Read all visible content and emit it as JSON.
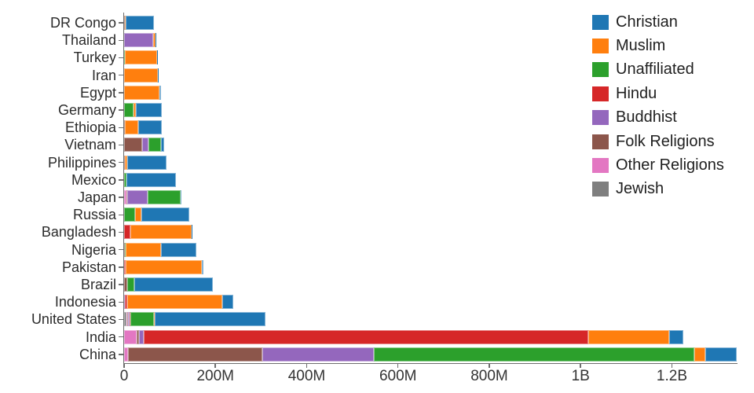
{
  "chart_data": {
    "type": "bar",
    "orientation": "horizontal",
    "stacked": true,
    "title": "",
    "xlabel": "",
    "ylabel": "",
    "unit": "people",
    "value_scale": "millions",
    "grid": false,
    "legend_position": "upper-right",
    "stack_order": [
      "Jewish",
      "Other Religions",
      "Folk Religions",
      "Buddhist",
      "Hindu",
      "Unaffiliated",
      "Muslim",
      "Christian"
    ],
    "legend": [
      {
        "label": "Christian",
        "color": "#1f77b4"
      },
      {
        "label": "Muslim",
        "color": "#ff7f0e"
      },
      {
        "label": "Unaffiliated",
        "color": "#2ca02c"
      },
      {
        "label": "Hindu",
        "color": "#d62728"
      },
      {
        "label": "Buddhist",
        "color": "#9467bd"
      },
      {
        "label": "Folk Religions",
        "color": "#8c564b"
      },
      {
        "label": "Other Religions",
        "color": "#e377c2"
      },
      {
        "label": "Jewish",
        "color": "#7f7f7f"
      }
    ],
    "x_axis": {
      "min": 0,
      "max": 1342,
      "ticks": [
        {
          "value": 0,
          "label": "0"
        },
        {
          "value": 200,
          "label": "200M"
        },
        {
          "value": 400,
          "label": "400M"
        },
        {
          "value": 600,
          "label": "600M"
        },
        {
          "value": 800,
          "label": "800M"
        },
        {
          "value": 1000,
          "label": "1B"
        },
        {
          "value": 1200,
          "label": "1.2B"
        }
      ]
    },
    "categories": [
      "DR Congo",
      "Thailand",
      "Turkey",
      "Iran",
      "Egypt",
      "Germany",
      "Ethiopia",
      "Vietnam",
      "Philippines",
      "Mexico",
      "Japan",
      "Russia",
      "Bangladesh",
      "Nigeria",
      "Pakistan",
      "Brazil",
      "Indonesia",
      "United States",
      "India",
      "China"
    ],
    "countries": [
      {
        "name": "DR Congo",
        "total": 65.9,
        "segments": [
          {
            "religion": "Folk Religions",
            "value": 1.7
          },
          {
            "religion": "Muslim",
            "value": 1.0
          },
          {
            "religion": "Christian",
            "value": 63.2
          }
        ]
      },
      {
        "name": "Thailand",
        "total": 68.8,
        "segments": [
          {
            "religion": "Buddhist",
            "value": 64.4
          },
          {
            "religion": "Muslim",
            "value": 3.8
          },
          {
            "religion": "Christian",
            "value": 0.6
          }
        ]
      },
      {
        "name": "Turkey",
        "total": 72.5,
        "segments": [
          {
            "religion": "Unaffiliated",
            "value": 0.9
          },
          {
            "religion": "Muslim",
            "value": 71.3
          },
          {
            "religion": "Christian",
            "value": 0.3
          }
        ]
      },
      {
        "name": "Iran",
        "total": 74.0,
        "segments": [
          {
            "religion": "Other Religions",
            "value": 0.2
          },
          {
            "religion": "Muslim",
            "value": 73.6
          },
          {
            "religion": "Christian",
            "value": 0.2
          }
        ]
      },
      {
        "name": "Egypt",
        "total": 81.1,
        "segments": [
          {
            "religion": "Muslim",
            "value": 77.0
          },
          {
            "religion": "Christian",
            "value": 4.1
          }
        ]
      },
      {
        "name": "Germany",
        "total": 82.2,
        "segments": [
          {
            "religion": "Jewish",
            "value": 0.2
          },
          {
            "religion": "Buddhist",
            "value": 0.3
          },
          {
            "religion": "Unaffiliated",
            "value": 20.4
          },
          {
            "religion": "Muslim",
            "value": 4.8
          },
          {
            "religion": "Christian",
            "value": 56.5
          }
        ]
      },
      {
        "name": "Ethiopia",
        "total": 83.0,
        "segments": [
          {
            "religion": "Folk Religions",
            "value": 2.2
          },
          {
            "religion": "Muslim",
            "value": 28.7
          },
          {
            "religion": "Christian",
            "value": 52.1
          }
        ]
      },
      {
        "name": "Vietnam",
        "total": 87.7,
        "segments": [
          {
            "religion": "Folk Religions",
            "value": 39.8
          },
          {
            "religion": "Buddhist",
            "value": 14.4
          },
          {
            "religion": "Unaffiliated",
            "value": 26.0
          },
          {
            "religion": "Christian",
            "value": 7.5
          }
        ]
      },
      {
        "name": "Philippines",
        "total": 93.0,
        "segments": [
          {
            "religion": "Folk Religions",
            "value": 1.4
          },
          {
            "religion": "Unaffiliated",
            "value": 0.1
          },
          {
            "religion": "Muslim",
            "value": 5.1
          },
          {
            "religion": "Christian",
            "value": 86.4
          }
        ]
      },
      {
        "name": "Mexico",
        "total": 113.1,
        "segments": [
          {
            "religion": "Unaffiliated",
            "value": 5.3
          },
          {
            "religion": "Christian",
            "value": 107.8
          }
        ]
      },
      {
        "name": "Japan",
        "total": 126.4,
        "segments": [
          {
            "religion": "Other Religions",
            "value": 6.0
          },
          {
            "religion": "Folk Religions",
            "value": 0.5
          },
          {
            "religion": "Buddhist",
            "value": 45.8
          },
          {
            "religion": "Unaffiliated",
            "value": 72.1
          },
          {
            "religion": "Christian",
            "value": 2.0
          }
        ]
      },
      {
        "name": "Russia",
        "total": 142.6,
        "segments": [
          {
            "religion": "Jewish",
            "value": 0.3
          },
          {
            "religion": "Unaffiliated",
            "value": 23.2
          },
          {
            "religion": "Muslim",
            "value": 14.3
          },
          {
            "religion": "Christian",
            "value": 104.8
          }
        ]
      },
      {
        "name": "Bangladesh",
        "total": 148.1,
        "segments": [
          {
            "religion": "Buddhist",
            "value": 0.7
          },
          {
            "religion": "Hindu",
            "value": 13.5
          },
          {
            "religion": "Muslim",
            "value": 133.5
          },
          {
            "religion": "Christian",
            "value": 0.4
          }
        ]
      },
      {
        "name": "Nigeria",
        "total": 158.2,
        "segments": [
          {
            "religion": "Folk Religions",
            "value": 2.2
          },
          {
            "religion": "Unaffiliated",
            "value": 0.6
          },
          {
            "religion": "Muslim",
            "value": 77.3
          },
          {
            "religion": "Christian",
            "value": 78.1
          }
        ]
      },
      {
        "name": "Pakistan",
        "total": 173.5,
        "segments": [
          {
            "religion": "Hindu",
            "value": 3.3
          },
          {
            "religion": "Muslim",
            "value": 167.4
          },
          {
            "religion": "Christian",
            "value": 2.8
          }
        ]
      },
      {
        "name": "Brazil",
        "total": 194.9,
        "segments": [
          {
            "religion": "Other Religions",
            "value": 0.7
          },
          {
            "religion": "Folk Religions",
            "value": 5.5
          },
          {
            "religion": "Unaffiliated",
            "value": 15.4
          },
          {
            "religion": "Christian",
            "value": 173.3
          }
        ]
      },
      {
        "name": "Indonesia",
        "total": 239.5,
        "segments": [
          {
            "religion": "Folk Religions",
            "value": 0.7
          },
          {
            "religion": "Buddhist",
            "value": 1.7
          },
          {
            "religion": "Hindu",
            "value": 4.1
          },
          {
            "religion": "Unaffiliated",
            "value": 0.2
          },
          {
            "religion": "Muslim",
            "value": 209.1
          },
          {
            "religion": "Christian",
            "value": 23.7
          }
        ]
      },
      {
        "name": "United States",
        "total": 310.5,
        "segments": [
          {
            "religion": "Jewish",
            "value": 5.7
          },
          {
            "religion": "Other Religions",
            "value": 1.9
          },
          {
            "religion": "Folk Religions",
            "value": 0.6
          },
          {
            "religion": "Buddhist",
            "value": 3.6
          },
          {
            "religion": "Hindu",
            "value": 1.8
          },
          {
            "religion": "Unaffiliated",
            "value": 51.0
          },
          {
            "religion": "Muslim",
            "value": 2.8
          },
          {
            "religion": "Christian",
            "value": 243.1
          }
        ]
      },
      {
        "name": "India",
        "total": 1224.7,
        "segments": [
          {
            "religion": "Other Religions",
            "value": 27.6
          },
          {
            "religion": "Folk Religions",
            "value": 5.8
          },
          {
            "religion": "Buddhist",
            "value": 9.3
          },
          {
            "religion": "Hindu",
            "value": 973.8
          },
          {
            "religion": "Unaffiliated",
            "value": 0.9
          },
          {
            "religion": "Muslim",
            "value": 176.2
          },
          {
            "religion": "Christian",
            "value": 31.1
          }
        ]
      },
      {
        "name": "China",
        "total": 1341.4,
        "segments": [
          {
            "religion": "Other Religions",
            "value": 9.2
          },
          {
            "religion": "Folk Religions",
            "value": 294.3
          },
          {
            "religion": "Buddhist",
            "value": 244.1
          },
          {
            "religion": "Unaffiliated",
            "value": 700.7
          },
          {
            "religion": "Muslim",
            "value": 24.7
          },
          {
            "religion": "Christian",
            "value": 68.4
          }
        ]
      }
    ]
  }
}
